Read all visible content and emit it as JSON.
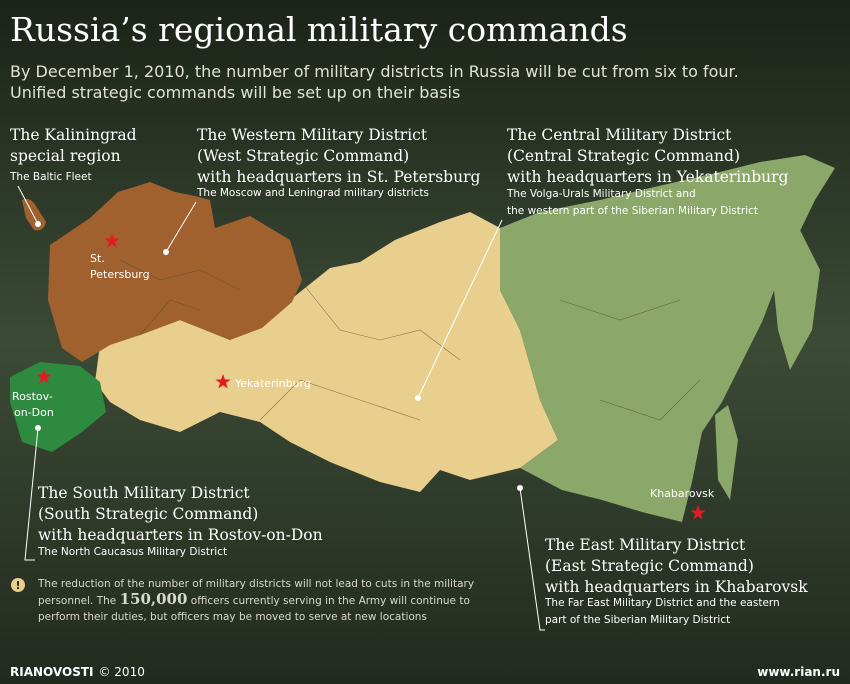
{
  "title": "Russia’s regional military commands",
  "subtitle": [
    "By December 1, 2010, the number of military districts in Russia will be cut from six to four.",
    "Unified strategic commands will be set up on their basis"
  ],
  "regions": [
    {
      "heading": [
        "The Kaliningrad",
        "special region"
      ],
      "note": [
        "The Baltic Fleet"
      ]
    },
    {
      "heading": [
        "The Western Military District",
        "(West Strategic Command)",
        "with headquarters in St. Petersburg"
      ],
      "note": [
        "The Moscow and Leningrad military districts"
      ]
    },
    {
      "heading": [
        "The Central Military District",
        "(Central Strategic Command)",
        "with headquarters in Yekaterinburg"
      ],
      "note": [
        "The Volga-Urals Military District and",
        "the western part of the Siberian Military District"
      ]
    },
    {
      "heading": [
        "The South Military District",
        "(South Strategic Command)",
        "with headquarters in Rostov-on-Don"
      ],
      "note": [
        "The North Caucasus Military District"
      ]
    },
    {
      "heading": [
        "The East Military District",
        "(East Strategic Command)",
        "with headquarters in Khabarovsk"
      ],
      "note": [
        "The Far East Military District and the eastern",
        "part of the Siberian Military District"
      ]
    }
  ],
  "cities": [
    {
      "name": [
        "St.",
        "Petersburg"
      ]
    },
    {
      "name": [
        "Yekaterinburg"
      ]
    },
    {
      "name": [
        "Rostov-",
        "on-Don"
      ]
    },
    {
      "name": [
        "Khabarovsk"
      ]
    }
  ],
  "footnote": {
    "icon": "!",
    "parts": [
      "The reduction of the number of military districts will not lead to cuts in the military",
      "personnel. The ",
      "150,000",
      " officers currently serving in the Army will continue to",
      "perform their duties, but officers may be moved to serve at new locations"
    ]
  },
  "footer": {
    "brand": "RIANOVOSTI",
    "copyright": "© 2010",
    "url": "www.rian.ru"
  }
}
